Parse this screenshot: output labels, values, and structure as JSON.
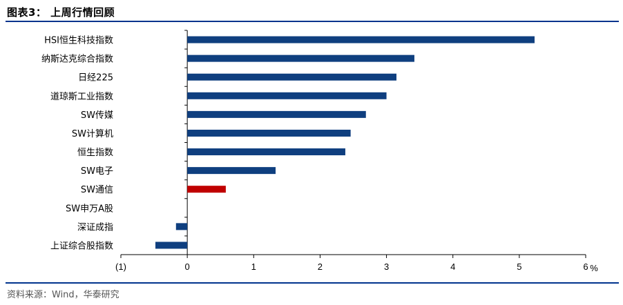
{
  "header": {
    "figure_title": "图表3：  上周行情回顾"
  },
  "footer": {
    "source": "资料来源：Wind，华泰研究"
  },
  "colors": {
    "bar_default": "#0f3f7f",
    "bar_highlight": "#c00000",
    "rule": "#00338d",
    "axis": "#000000"
  },
  "chart_data": {
    "type": "bar",
    "orientation": "horizontal",
    "categories": [
      "HSI恒生科技指数",
      "纳斯达克综合指数",
      "日经225",
      "道琼斯工业指数",
      "SW传媒",
      "SW计算机",
      "恒生指数",
      "SW电子",
      "SW通信",
      "SW申万A股",
      "深证成指",
      "上证综合股指数"
    ],
    "values": [
      5.23,
      3.42,
      3.15,
      3.0,
      2.69,
      2.46,
      2.38,
      1.33,
      0.58,
      0.0,
      -0.17,
      -0.48
    ],
    "highlight_index": 8,
    "xlim": [
      -1,
      6
    ],
    "xticks": [
      -1,
      0,
      1,
      2,
      3,
      4,
      5,
      6
    ],
    "xtick_labels": [
      "(1)",
      "0",
      "1",
      "2",
      "3",
      "4",
      "5",
      "6"
    ],
    "x_unit": "%",
    "title": "",
    "xlabel": "",
    "ylabel": "",
    "grid": false
  }
}
